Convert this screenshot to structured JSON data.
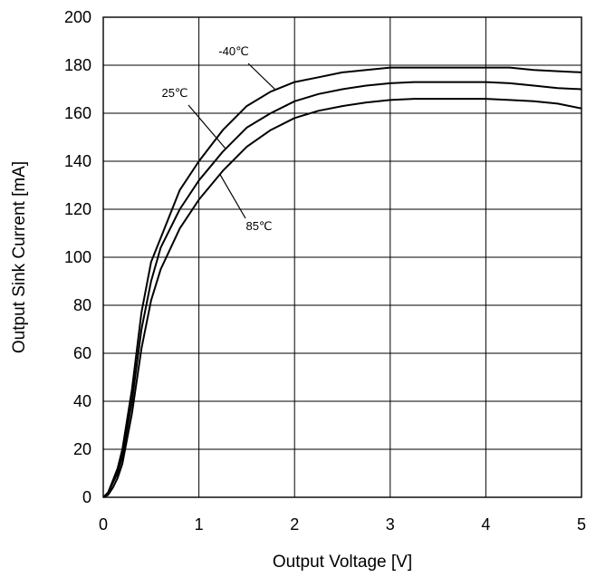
{
  "chart_data": {
    "type": "line",
    "xlabel": "Output Voltage [V]",
    "ylabel": "Output Sink Current [mA]",
    "xlim": [
      0,
      5
    ],
    "ylim": [
      0,
      200
    ],
    "xticks": [
      0,
      1,
      2,
      3,
      4,
      5
    ],
    "yticks": [
      0,
      20,
      40,
      60,
      80,
      100,
      120,
      140,
      160,
      180,
      200
    ],
    "grid": true,
    "series": [
      {
        "name": "-40℃",
        "x": [
          0,
          0.05,
          0.1,
          0.15,
          0.2,
          0.3,
          0.4,
          0.5,
          0.6,
          0.8,
          1.0,
          1.25,
          1.5,
          1.75,
          2.0,
          2.25,
          2.5,
          2.75,
          3.0,
          3.25,
          3.5,
          3.75,
          4.0,
          4.25,
          4.5,
          4.75,
          5.0
        ],
        "y": [
          0,
          2,
          7,
          12,
          20,
          45,
          77,
          98,
          108,
          128,
          140,
          153,
          163,
          169,
          173,
          175,
          177,
          178,
          179,
          179,
          179,
          179,
          179,
          179,
          178,
          177.5,
          177
        ]
      },
      {
        "name": "25℃",
        "x": [
          0,
          0.05,
          0.1,
          0.15,
          0.2,
          0.3,
          0.4,
          0.5,
          0.6,
          0.8,
          1.0,
          1.25,
          1.5,
          1.75,
          2.0,
          2.25,
          2.5,
          2.75,
          3.0,
          3.25,
          3.5,
          3.75,
          4.0,
          4.25,
          4.5,
          4.75,
          5.0
        ],
        "y": [
          0,
          1.5,
          6,
          10,
          17,
          40,
          70,
          90,
          104,
          120,
          132,
          144,
          154,
          160,
          165,
          168,
          170,
          171.5,
          172.5,
          173,
          173,
          173,
          173,
          172.5,
          171.5,
          170.5,
          170
        ]
      },
      {
        "name": "85℃",
        "x": [
          0,
          0.05,
          0.1,
          0.15,
          0.2,
          0.3,
          0.4,
          0.5,
          0.6,
          0.8,
          1.0,
          1.25,
          1.5,
          1.75,
          2.0,
          2.25,
          2.5,
          2.75,
          3.0,
          3.25,
          3.5,
          3.75,
          4.0,
          4.25,
          4.5,
          4.75,
          5.0
        ],
        "y": [
          0,
          1,
          4,
          8,
          14,
          35,
          62,
          82,
          95,
          112,
          124,
          136,
          146,
          153,
          158,
          161,
          163,
          164.5,
          165.5,
          166,
          166,
          166,
          166,
          165.5,
          165,
          164,
          162
        ]
      }
    ],
    "annotations": [
      {
        "text": "-40℃",
        "series": "-40℃",
        "at_x": 1.8
      },
      {
        "text": "25℃",
        "series": "25℃",
        "at_x": 1.28
      },
      {
        "text": "85℃",
        "series": "85℃",
        "at_x": 1.22
      }
    ]
  }
}
